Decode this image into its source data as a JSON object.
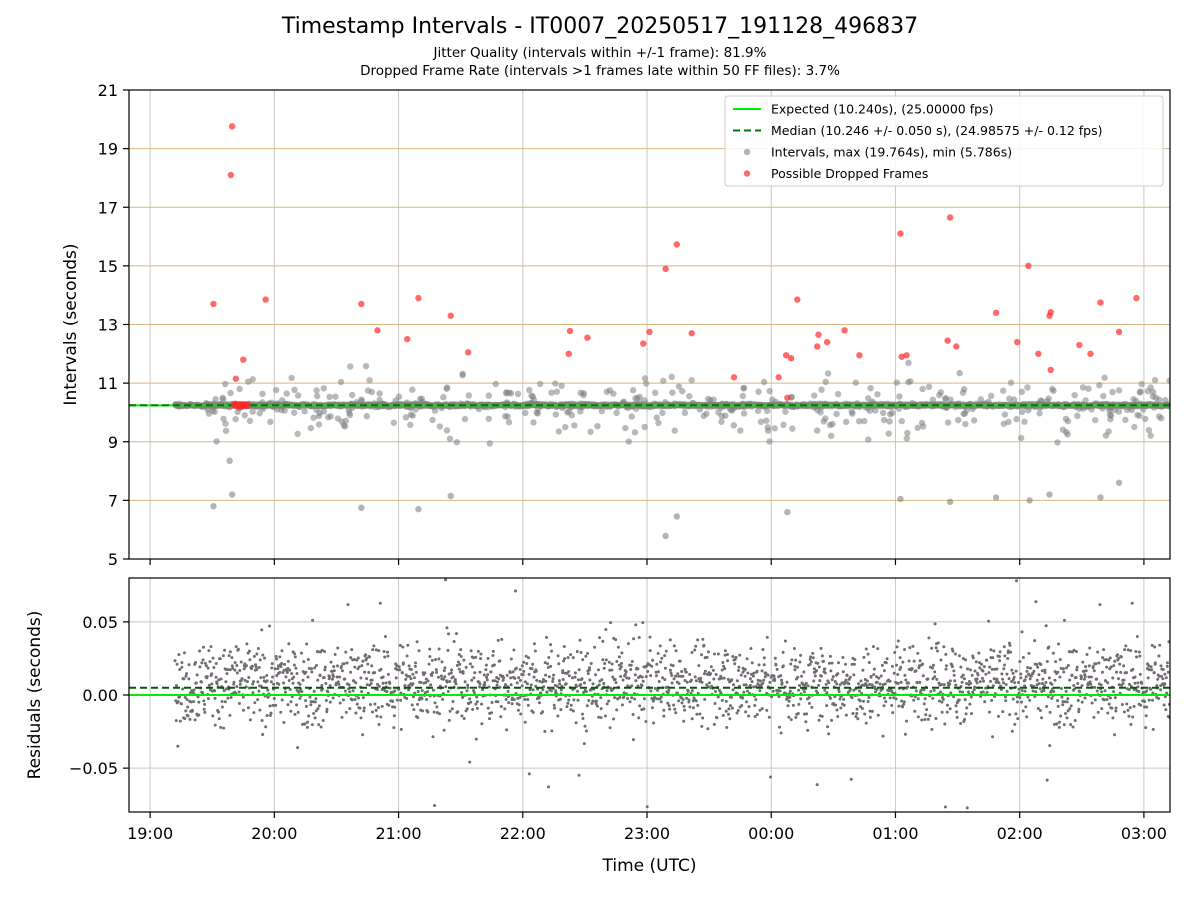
{
  "chart_data": {
    "title": "Timestamp Intervals - IT0007_20250517_191128_496837",
    "subtitles": [
      "Jitter Quality (intervals within +/-1 frame): 81.9%",
      "Dropped Frame Rate (intervals >1 frames late within 50 FF files): 3.7%"
    ],
    "colors": {
      "expected": "#00ee00",
      "median": "#007a00",
      "intervals": "#808080",
      "dropped": "#ff2a2a",
      "hgrid": "#d8b880",
      "vgrid": "#c8c8c8"
    },
    "xlabel": "Time (UTC)",
    "x_range_hours": [
      18.83,
      27.21
    ],
    "x_ticks": [
      {
        "h": 19,
        "label": "19:00"
      },
      {
        "h": 20,
        "label": "20:00"
      },
      {
        "h": 21,
        "label": "21:00"
      },
      {
        "h": 22,
        "label": "22:00"
      },
      {
        "h": 23,
        "label": "23:00"
      },
      {
        "h": 24,
        "label": "00:00"
      },
      {
        "h": 25,
        "label": "01:00"
      },
      {
        "h": 26,
        "label": "02:00"
      },
      {
        "h": 27,
        "label": "03:00"
      }
    ],
    "top_panel": {
      "type": "scatter",
      "ylabel": "Intervals (seconds)",
      "ylim": [
        5,
        21
      ],
      "y_ticks": [
        5,
        7,
        9,
        11,
        13,
        15,
        17,
        19,
        21
      ],
      "expected_interval": 10.24,
      "median_interval": 10.246,
      "legend": {
        "position": "top-right",
        "entries": [
          {
            "kind": "solid",
            "label": "Expected (10.240s), (25.00000 fps)"
          },
          {
            "kind": "dashed",
            "label": "Median (10.246 +/- 0.050 s), (24.98575 +/- 0.12 fps)"
          },
          {
            "kind": "grey-dot",
            "label": "Intervals, max (19.764s), min (5.786s)"
          },
          {
            "kind": "red-dot",
            "label": "Possible Dropped Frames"
          }
        ]
      },
      "dropped_points": [
        [
          19.51,
          13.7
        ],
        [
          19.66,
          19.76
        ],
        [
          19.65,
          18.1
        ],
        [
          19.69,
          11.15
        ],
        [
          19.75,
          11.8
        ],
        [
          19.93,
          13.85
        ],
        [
          20.7,
          13.7
        ],
        [
          20.83,
          12.8
        ],
        [
          21.07,
          12.5
        ],
        [
          21.16,
          13.9
        ],
        [
          21.42,
          13.3
        ],
        [
          21.56,
          12.05
        ],
        [
          22.37,
          12.0
        ],
        [
          22.38,
          12.78
        ],
        [
          22.52,
          12.55
        ],
        [
          22.97,
          12.35
        ],
        [
          23.02,
          12.75
        ],
        [
          23.15,
          14.9
        ],
        [
          23.24,
          15.73
        ],
        [
          23.36,
          12.7
        ],
        [
          23.7,
          11.2
        ],
        [
          24.06,
          11.2
        ],
        [
          24.12,
          11.95
        ],
        [
          24.13,
          10.5
        ],
        [
          24.16,
          11.85
        ],
        [
          24.21,
          13.85
        ],
        [
          24.37,
          12.25
        ],
        [
          24.38,
          12.65
        ],
        [
          24.45,
          12.4
        ],
        [
          24.59,
          12.8
        ],
        [
          24.71,
          11.95
        ],
        [
          25.04,
          16.1
        ],
        [
          25.05,
          11.9
        ],
        [
          25.09,
          11.95
        ],
        [
          25.42,
          12.45
        ],
        [
          25.44,
          16.65
        ],
        [
          25.49,
          12.25
        ],
        [
          25.81,
          13.4
        ],
        [
          25.98,
          12.4
        ],
        [
          26.07,
          15.0
        ],
        [
          26.15,
          12.0
        ],
        [
          26.24,
          13.3
        ],
        [
          26.25,
          13.42
        ],
        [
          26.25,
          11.45
        ],
        [
          26.48,
          12.3
        ],
        [
          26.57,
          12.0
        ],
        [
          26.65,
          13.75
        ],
        [
          26.8,
          12.75
        ],
        [
          26.94,
          13.9
        ]
      ],
      "notable_intervals": [
        [
          19.51,
          6.8
        ],
        [
          19.66,
          7.2
        ],
        [
          19.64,
          8.35
        ],
        [
          20.7,
          6.75
        ],
        [
          21.16,
          6.7
        ],
        [
          21.42,
          7.15
        ],
        [
          23.15,
          5.786
        ],
        [
          23.24,
          6.45
        ],
        [
          24.13,
          6.6
        ],
        [
          25.04,
          7.05
        ],
        [
          25.44,
          6.95
        ],
        [
          25.81,
          7.1
        ],
        [
          26.08,
          7.0
        ],
        [
          26.24,
          7.2
        ],
        [
          26.65,
          7.1
        ],
        [
          26.8,
          7.6
        ]
      ],
      "dropped_cluster": {
        "h_start": 19.68,
        "h_end": 19.78,
        "value": 10.25
      },
      "intervals_line_start_h": 19.2
    },
    "bottom_panel": {
      "type": "scatter",
      "ylabel": "Residuals (seconds)",
      "ylim": [
        -0.08,
        0.08
      ],
      "y_ticks": [
        {
          "v": 0.05,
          "label": "0.05"
        },
        {
          "v": 0,
          "label": "0.00"
        },
        {
          "v": -0.05,
          "label": "−0.05"
        }
      ],
      "expected": 0.0,
      "median": 0.005
    }
  }
}
